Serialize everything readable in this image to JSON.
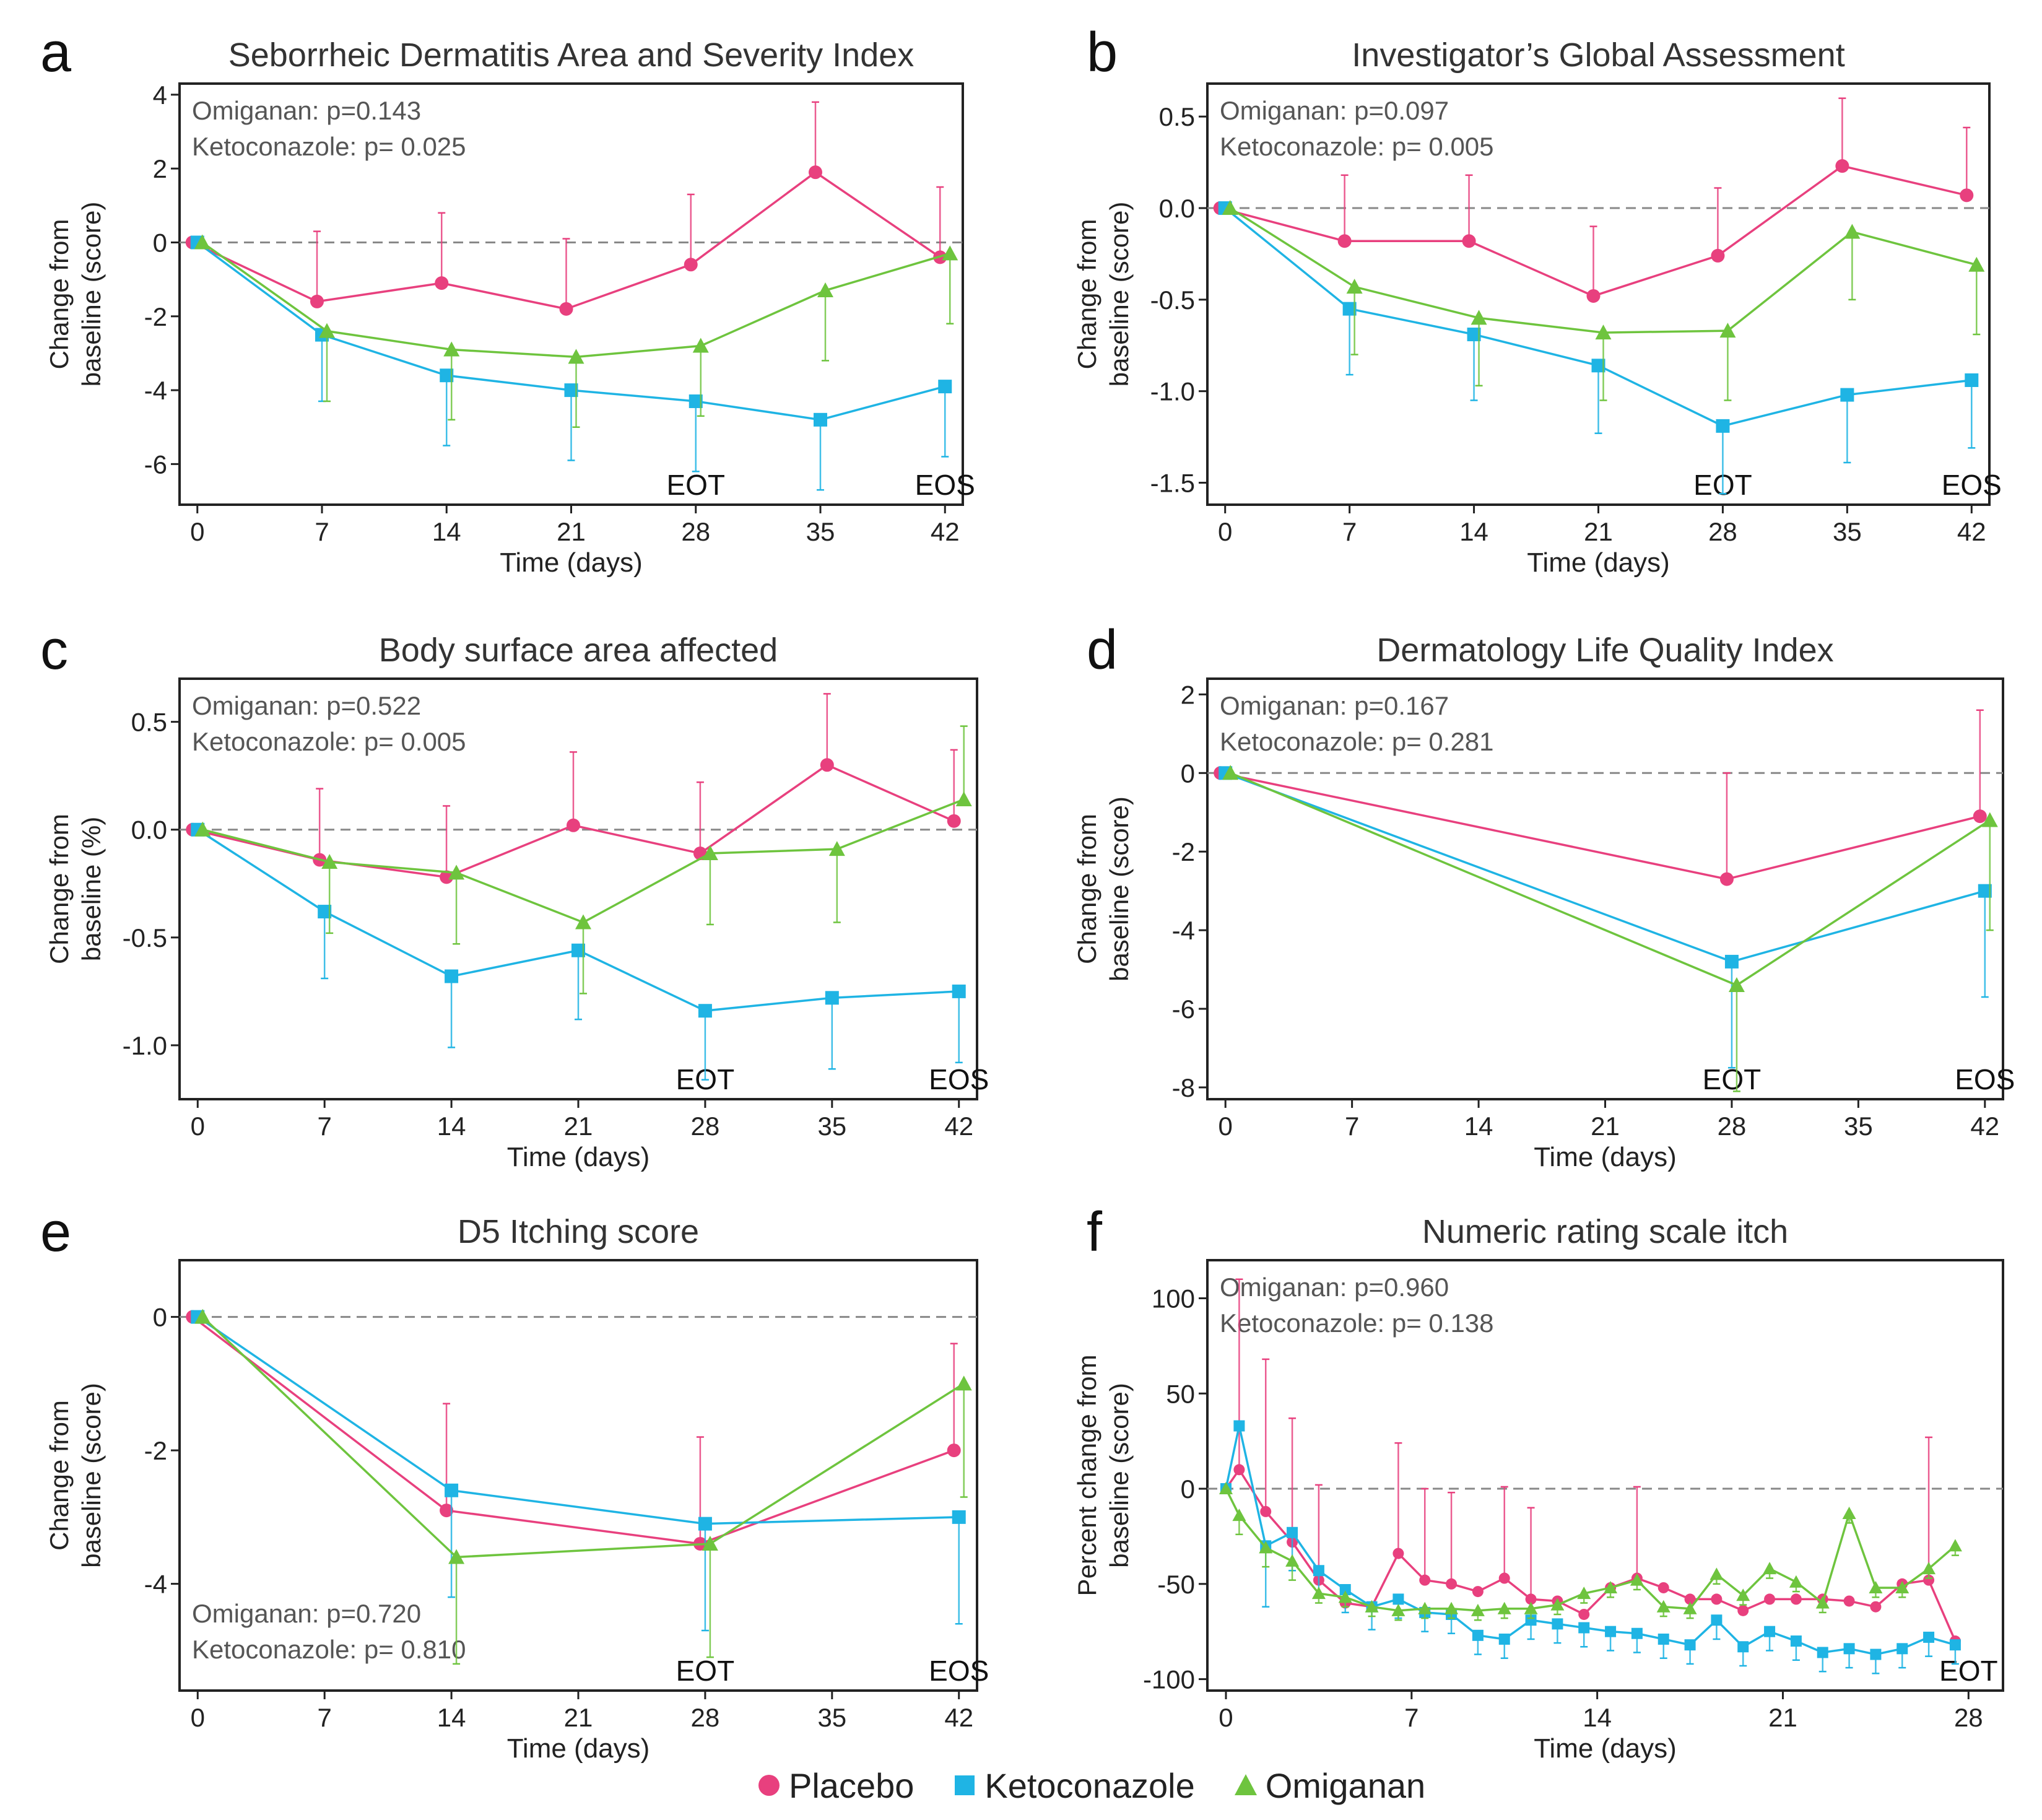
{
  "colors": {
    "placebo": "#E8407E",
    "ketoconazole": "#1FB4E4",
    "omiganan": "#6EC43E"
  },
  "legend": [
    {
      "key": "placebo",
      "label": "Placebo",
      "marker": "circle"
    },
    {
      "key": "ketoconazole",
      "label": "Ketoconazole",
      "marker": "square"
    },
    {
      "key": "omiganan",
      "label": "Omiganan",
      "marker": "triangle"
    }
  ],
  "chart_data": [
    {
      "panel": "a",
      "type": "line",
      "title": "Seborrheic Dermatitis Area and Severity Index",
      "xlabel": "Time (days)",
      "ylabel": [
        "Change from",
        "baseline (score)"
      ],
      "xlim": [
        -1,
        43
      ],
      "ylim": [
        -7.1,
        4.3
      ],
      "xticks": [
        0,
        7,
        14,
        21,
        28,
        35,
        42
      ],
      "yticks": [
        4,
        2,
        0,
        -2,
        -4,
        -6
      ],
      "ytick_labels": [
        "4",
        "2",
        "0",
        "-2",
        "-4",
        "-6"
      ],
      "pvalues": [
        "Omiganan: p=0.143",
        "Ketoconazole: p= 0.025"
      ],
      "pvalue_position": "top-left",
      "markers": [
        {
          "label": "EOT",
          "x": 28
        },
        {
          "label": "EOS",
          "x": 42
        }
      ],
      "series": [
        {
          "name": "Placebo",
          "key": "placebo",
          "x": [
            0,
            7,
            14,
            21,
            28,
            35,
            42
          ],
          "y": [
            0,
            -1.6,
            -1.1,
            -1.8,
            -0.6,
            1.9,
            -0.4
          ],
          "err": [
            0,
            1.9,
            1.9,
            1.9,
            1.9,
            1.9,
            1.9
          ]
        },
        {
          "name": "Ketoconazole",
          "key": "ketoconazole",
          "x": [
            0,
            7,
            14,
            21,
            28,
            35,
            42
          ],
          "y": [
            0,
            -2.5,
            -3.6,
            -4.0,
            -4.3,
            -4.8,
            -3.9
          ],
          "err": [
            0,
            1.8,
            1.9,
            1.9,
            1.9,
            1.9,
            1.9
          ]
        },
        {
          "name": "Omiganan",
          "key": "omiganan",
          "x": [
            0,
            7,
            14,
            21,
            28,
            35,
            42
          ],
          "y": [
            0,
            -2.4,
            -2.9,
            -3.1,
            -2.8,
            -1.3,
            -0.3
          ],
          "err": [
            0,
            1.9,
            1.9,
            1.9,
            1.9,
            1.9,
            1.9
          ]
        }
      ]
    },
    {
      "panel": "b",
      "type": "line",
      "title": "Investigator’s Global Assessment",
      "xlabel": "Time (days)",
      "ylabel": [
        "Change from",
        "baseline (score)"
      ],
      "xlim": [
        -1,
        43
      ],
      "ylim": [
        -1.62,
        0.68
      ],
      "xticks": [
        0,
        7,
        14,
        21,
        28,
        35,
        42
      ],
      "yticks": [
        0.5,
        0,
        -0.5,
        -1,
        -1.5
      ],
      "ytick_labels": [
        "0.5",
        "0.0",
        "-0.5",
        "-1.0",
        "-1.5"
      ],
      "pvalues": [
        "Omiganan: p=0.097",
        "Ketoconazole: p= 0.005"
      ],
      "pvalue_position": "top-left",
      "markers": [
        {
          "label": "EOT",
          "x": 28
        },
        {
          "label": "EOS",
          "x": 42
        }
      ],
      "series": [
        {
          "name": "Placebo",
          "key": "placebo",
          "x": [
            0,
            7,
            14,
            21,
            28,
            35,
            42
          ],
          "y": [
            0,
            -0.18,
            -0.18,
            -0.48,
            -0.26,
            0.23,
            0.07
          ],
          "err": [
            0,
            0.36,
            0.36,
            0.38,
            0.37,
            0.37,
            0.37
          ]
        },
        {
          "name": "Ketoconazole",
          "key": "ketoconazole",
          "x": [
            0,
            7,
            14,
            21,
            28,
            35,
            42
          ],
          "y": [
            0,
            -0.55,
            -0.69,
            -0.86,
            -1.19,
            -1.02,
            -0.94
          ],
          "err": [
            0,
            0.36,
            0.36,
            0.37,
            0.37,
            0.37,
            0.37
          ]
        },
        {
          "name": "Omiganan",
          "key": "omiganan",
          "x": [
            0,
            7,
            14,
            21,
            28,
            35,
            42
          ],
          "y": [
            0,
            -0.43,
            -0.6,
            -0.68,
            -0.67,
            -0.13,
            -0.31
          ],
          "err": [
            0,
            0.37,
            0.37,
            0.37,
            0.38,
            0.37,
            0.38
          ]
        }
      ]
    },
    {
      "panel": "c",
      "type": "line",
      "title": "Body surface area affected",
      "xlabel": "Time (days)",
      "ylabel": [
        "Change from",
        "baseline (%)"
      ],
      "xlim": [
        -1,
        43
      ],
      "ylim": [
        -1.25,
        0.7
      ],
      "xticks": [
        0,
        7,
        14,
        21,
        28,
        35,
        42
      ],
      "yticks": [
        0.5,
        0,
        -0.5,
        -1
      ],
      "ytick_labels": [
        "0.5",
        "0.0",
        "-0.5",
        "-1.0"
      ],
      "pvalues": [
        "Omiganan: p=0.522",
        "Ketoconazole: p= 0.005"
      ],
      "pvalue_position": "top-left",
      "markers": [
        {
          "label": "EOT",
          "x": 28
        },
        {
          "label": "EOS",
          "x": 42
        }
      ],
      "series": [
        {
          "name": "Placebo",
          "key": "placebo",
          "x": [
            0,
            7,
            14,
            21,
            28,
            35,
            42
          ],
          "y": [
            0,
            -0.14,
            -0.22,
            0.02,
            -0.11,
            0.3,
            0.04
          ],
          "err": [
            0,
            0.33,
            0.33,
            0.34,
            0.33,
            0.33,
            0.33
          ]
        },
        {
          "name": "Ketoconazole",
          "key": "ketoconazole",
          "x": [
            0,
            7,
            14,
            21,
            28,
            35,
            42
          ],
          "y": [
            0,
            -0.38,
            -0.68,
            -0.56,
            -0.84,
            -0.78,
            -0.75
          ],
          "err": [
            0,
            0.31,
            0.33,
            0.32,
            0.32,
            0.33,
            0.33
          ]
        },
        {
          "name": "Omiganan",
          "key": "omiganan",
          "x": [
            0,
            7,
            14,
            21,
            28,
            35,
            42
          ],
          "y": [
            0,
            -0.15,
            -0.2,
            -0.43,
            -0.11,
            -0.09,
            0.14
          ],
          "err": [
            0,
            0.33,
            0.33,
            0.33,
            0.33,
            0.34,
            0.34
          ]
        }
      ]
    },
    {
      "panel": "d",
      "type": "line",
      "title": "Dermatology Life Quality Index",
      "xlabel": "Time (days)",
      "ylabel": [
        "Change from",
        "baseline (score)"
      ],
      "xlim": [
        -1,
        43
      ],
      "ylim": [
        -8.3,
        2.4
      ],
      "xticks": [
        0,
        7,
        14,
        21,
        28,
        35,
        42
      ],
      "yticks": [
        2,
        0,
        -2,
        -4,
        -6,
        -8
      ],
      "ytick_labels": [
        "2",
        "0",
        "-2",
        "-4",
        "-6",
        "-8"
      ],
      "pvalues": [
        "Omiganan: p=0.167",
        "Ketoconazole: p= 0.281"
      ],
      "pvalue_position": "top-left",
      "markers": [
        {
          "label": "EOT",
          "x": 28
        },
        {
          "label": "EOS",
          "x": 42
        }
      ],
      "series": [
        {
          "name": "Placebo",
          "key": "placebo",
          "x": [
            0,
            28,
            42
          ],
          "y": [
            0,
            -2.7,
            -1.1
          ],
          "err": [
            0,
            2.7,
            2.7
          ]
        },
        {
          "name": "Ketoconazole",
          "key": "ketoconazole",
          "x": [
            0,
            28,
            42
          ],
          "y": [
            0,
            -4.8,
            -3.0
          ],
          "err": [
            0,
            2.7,
            2.7
          ]
        },
        {
          "name": "Omiganan",
          "key": "omiganan",
          "x": [
            0,
            28,
            42
          ],
          "y": [
            0,
            -5.4,
            -1.2
          ],
          "err": [
            0,
            2.7,
            2.8
          ]
        }
      ]
    },
    {
      "panel": "e",
      "type": "line",
      "title": "D5 Itching score",
      "xlabel": "Time (days)",
      "ylabel": [
        "Change from",
        "baseline (score)"
      ],
      "xlim": [
        -1,
        43
      ],
      "ylim": [
        -5.6,
        0.85
      ],
      "xticks": [
        0,
        7,
        14,
        21,
        28,
        35,
        42
      ],
      "yticks": [
        0,
        -2,
        -4
      ],
      "ytick_labels": [
        "0",
        "-2",
        "-4"
      ],
      "pvalues": [
        "Omiganan: p=0.720",
        "Ketoconazole: p= 0.810"
      ],
      "pvalue_position": "bottom-left",
      "markers": [
        {
          "label": "EOT",
          "x": 28
        },
        {
          "label": "EOS",
          "x": 42
        }
      ],
      "series": [
        {
          "name": "Placebo",
          "key": "placebo",
          "x": [
            0,
            14,
            28,
            42
          ],
          "y": [
            0,
            -2.9,
            -3.4,
            -2.0
          ],
          "err": [
            0,
            1.6,
            1.6,
            1.6
          ]
        },
        {
          "name": "Ketoconazole",
          "key": "ketoconazole",
          "x": [
            0,
            14,
            28,
            42
          ],
          "y": [
            0,
            -2.6,
            -3.1,
            -3.0
          ],
          "err": [
            0,
            1.6,
            1.6,
            1.6
          ]
        },
        {
          "name": "Omiganan",
          "key": "omiganan",
          "x": [
            0,
            14,
            28,
            42
          ],
          "y": [
            0,
            -3.6,
            -3.4,
            -1.0
          ],
          "err": [
            0,
            1.6,
            1.7,
            1.7
          ]
        }
      ]
    },
    {
      "panel": "f",
      "type": "line",
      "title": "Numeric rating scale itch",
      "xlabel": "Time (days)",
      "ylabel": [
        "Percent change from",
        "baseline (score)"
      ],
      "xlim": [
        -0.7,
        29.3
      ],
      "ylim": [
        -106,
        120
      ],
      "xticks": [
        0,
        7,
        14,
        21,
        28
      ],
      "yticks": [
        100,
        50,
        0,
        -50,
        -100
      ],
      "ytick_labels": [
        "100",
        "50",
        "0",
        "-50",
        "-100"
      ],
      "pvalues": [
        "Omiganan: p=0.960",
        "Ketoconazole: p= 0.138"
      ],
      "pvalue_position": "top-left",
      "markers": [
        {
          "label": "EOT",
          "x": 28
        }
      ],
      "series": [
        {
          "name": "Placebo",
          "key": "placebo",
          "x": [
            0,
            0.5,
            1.5,
            2.5,
            3.5,
            4.5,
            5.5,
            6.5,
            7.5,
            8.5,
            9.5,
            10.5,
            11.5,
            12.5,
            13.5,
            14.5,
            15.5,
            16.5,
            17.5,
            18.5,
            19.5,
            20.5,
            21.5,
            22.5,
            23.5,
            24.5,
            25.5,
            26.5,
            27.5
          ],
          "y": [
            0,
            10,
            -12,
            -28,
            -48,
            -60,
            -62,
            -34,
            -48,
            -50,
            -54,
            -47,
            -58,
            -59,
            -66,
            -52,
            -47,
            -52,
            -58,
            -58,
            -64,
            -58,
            -58,
            -58,
            -59,
            -62,
            -50,
            -48,
            -80
          ],
          "err": [
            0,
            100,
            80,
            65,
            50,
            0,
            0,
            58,
            48,
            48,
            0,
            48,
            48,
            0,
            0,
            0,
            48,
            0,
            0,
            0,
            0,
            0,
            0,
            0,
            0,
            0,
            0,
            75,
            0
          ]
        },
        {
          "name": "Ketoconazole",
          "key": "ketoconazole",
          "x": [
            0,
            0.5,
            1.5,
            2.5,
            3.5,
            4.5,
            5.5,
            6.5,
            7.5,
            8.5,
            9.5,
            10.5,
            11.5,
            12.5,
            13.5,
            14.5,
            15.5,
            16.5,
            17.5,
            18.5,
            19.5,
            20.5,
            21.5,
            22.5,
            23.5,
            24.5,
            25.5,
            26.5,
            27.5
          ],
          "y": [
            0,
            33,
            -30,
            -23,
            -43,
            -53,
            -62,
            -58,
            -65,
            -66,
            -77,
            -79,
            -69,
            -71,
            -73,
            -75,
            -76,
            -79,
            -82,
            -69,
            -83,
            -75,
            -80,
            -86,
            -84,
            -87,
            -84,
            -78,
            -82
          ],
          "err": [
            0,
            0,
            32,
            20,
            14,
            12,
            12,
            10,
            10,
            10,
            10,
            10,
            10,
            10,
            10,
            10,
            10,
            10,
            10,
            10,
            10,
            10,
            10,
            10,
            10,
            10,
            10,
            10,
            10
          ]
        },
        {
          "name": "Omiganan",
          "key": "omiganan",
          "x": [
            0,
            0.5,
            1.5,
            2.5,
            3.5,
            4.5,
            5.5,
            6.5,
            7.5,
            8.5,
            9.5,
            10.5,
            11.5,
            12.5,
            13.5,
            14.5,
            15.5,
            16.5,
            17.5,
            18.5,
            19.5,
            20.5,
            21.5,
            22.5,
            23.5,
            24.5,
            25.5,
            26.5,
            27.5
          ],
          "y": [
            0,
            -14,
            -31,
            -38,
            -55,
            -57,
            -62,
            -64,
            -63,
            -63,
            -64,
            -63,
            -63,
            -61,
            -55,
            -52,
            -48,
            -62,
            -63,
            -45,
            -56,
            -42,
            -49,
            -60,
            -13,
            -52,
            -52,
            -42,
            -30
          ],
          "err": [
            0,
            10,
            10,
            10,
            5,
            5,
            5,
            5,
            5,
            5,
            5,
            5,
            5,
            5,
            5,
            5,
            5,
            5,
            5,
            5,
            5,
            5,
            5,
            5,
            5,
            5,
            5,
            5,
            5
          ]
        }
      ]
    }
  ]
}
